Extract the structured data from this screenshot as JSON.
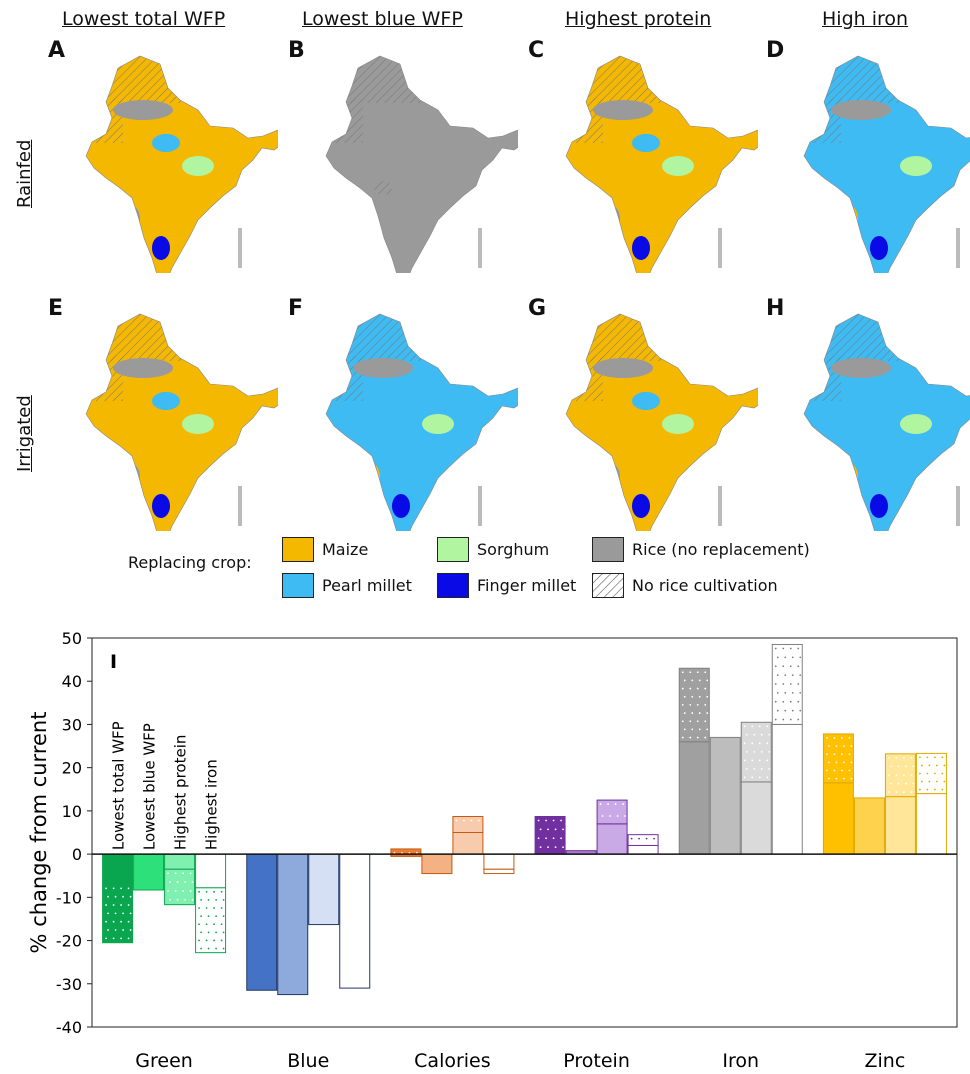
{
  "maps": {
    "columns": [
      "Lowest total WFP",
      "Lowest blue WFP",
      "Highest protein",
      "High iron"
    ],
    "rows": [
      "Rainfed",
      "Irrigated"
    ],
    "panels": [
      {
        "letter": "A",
        "dominant": "maize"
      },
      {
        "letter": "B",
        "dominant": "rice"
      },
      {
        "letter": "C",
        "dominant": "maize"
      },
      {
        "letter": "D",
        "dominant": "pearl_millet"
      },
      {
        "letter": "E",
        "dominant": "maize"
      },
      {
        "letter": "F",
        "dominant": "pearl_millet"
      },
      {
        "letter": "G",
        "dominant": "maize"
      },
      {
        "letter": "H",
        "dominant": "pearl_millet"
      }
    ]
  },
  "legend": {
    "title": "Replacing crop:",
    "items": [
      {
        "key": "maize",
        "label": "Maize",
        "color": "#F5B800"
      },
      {
        "key": "pearl_millet",
        "label": "Pearl millet",
        "color": "#3DBBF2"
      },
      {
        "key": "sorghum",
        "label": "Sorghum",
        "color": "#B2F5A0"
      },
      {
        "key": "finger_millet",
        "label": "Finger millet",
        "color": "#0A0AE6"
      },
      {
        "key": "rice",
        "label": "Rice (no replacement)",
        "color": "#9A9A9A"
      },
      {
        "key": "none",
        "label": "No rice cultivation",
        "color": "hatch"
      }
    ]
  },
  "chart_data": {
    "type": "bar",
    "panel_label": "I",
    "ylabel": "% change from current",
    "ylim": [
      -40,
      50
    ],
    "yticks": [
      -40,
      -30,
      -20,
      -10,
      0,
      10,
      20,
      30,
      40,
      50
    ],
    "categories": [
      "Green",
      "Blue",
      "Calories",
      "Protein",
      "Iron",
      "Zinc"
    ],
    "series": [
      {
        "name": "Lowest total WFP",
        "rainfed": [
          -7,
          -31.5,
          -0.5,
          0.5,
          26,
          16.5
        ],
        "irrigated": [
          -20.5,
          null,
          1.2,
          8.7,
          43,
          27.8
        ]
      },
      {
        "name": "Lowest blue WFP",
        "rainfed": [
          -8.3,
          -32.5,
          -4.5,
          0.8,
          27,
          13
        ],
        "irrigated": [
          null,
          null,
          null,
          null,
          null,
          null
        ]
      },
      {
        "name": "Highest protein",
        "rainfed": [
          -3.5,
          -16.3,
          5,
          7,
          16.7,
          13.3
        ],
        "irrigated": [
          -11.7,
          null,
          8.7,
          12.5,
          30.5,
          23.2
        ]
      },
      {
        "name": "Highest iron",
        "rainfed": [
          -7.8,
          -31,
          -3.5,
          2,
          30,
          14
        ],
        "irrigated": [
          -22.8,
          null,
          -4.5,
          4.5,
          48.5,
          23.3
        ]
      }
    ],
    "colors": {
      "Green": [
        "#0AA64F",
        "#2EE07A",
        "#7FF0B0",
        "#ffffff"
      ],
      "Blue": [
        "#4472C4",
        "#8EA9DB",
        "#D6E0F5",
        "#ffffff"
      ],
      "Calories": [
        "#ED7D31",
        "#F4B183",
        "#F8CBAD",
        "#ffffff"
      ],
      "Protein": [
        "#7030A0",
        "#A87BD1",
        "#C9A9E6",
        "#ffffff"
      ],
      "Iron": [
        "#A0A0A0",
        "#BDBDBD",
        "#DADADA",
        "#ffffff"
      ],
      "Zinc": [
        "#FFC000",
        "#FFD24D",
        "#FFE699",
        "#ffffff"
      ]
    },
    "outline": {
      "Green": "#0AA64F",
      "Blue": "#203864",
      "Calories": "#C55A11",
      "Protein": "#7030A0",
      "Iron": "#808080",
      "Zinc": "#E0A800"
    }
  }
}
